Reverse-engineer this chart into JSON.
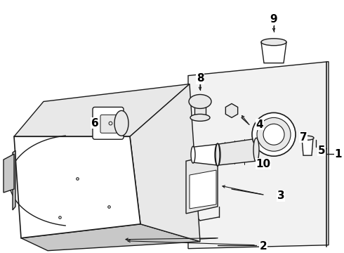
{
  "bg_color": "#ffffff",
  "line_color": "#1a1a1a",
  "label_color": "#000000",
  "figsize": [
    4.9,
    3.6
  ],
  "dpi": 100,
  "gray_fill": "#e8e8e8",
  "dark_gray": "#c8c8c8",
  "light_gray": "#f2f2f2"
}
